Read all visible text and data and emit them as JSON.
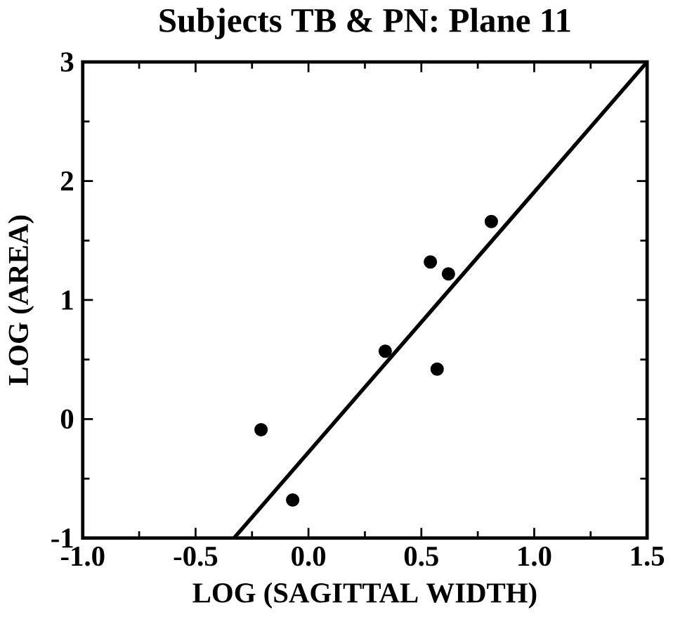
{
  "chart_data": {
    "type": "scatter",
    "title": "Subjects TB & PN: Plane 11",
    "xlabel": "LOG (SAGITTAL WIDTH)",
    "ylabel": "LOG (AREA)",
    "xlim": [
      -1.0,
      1.5
    ],
    "ylim": [
      -1,
      3
    ],
    "xticks": [
      {
        "value": -1.0,
        "label": "-1.0"
      },
      {
        "value": -0.5,
        "label": "-0.5"
      },
      {
        "value": 0.0,
        "label": "0.0"
      },
      {
        "value": 0.5,
        "label": "0.5"
      },
      {
        "value": 1.0,
        "label": "1.0"
      },
      {
        "value": 1.5,
        "label": "1.5"
      }
    ],
    "yticks": [
      -1,
      0,
      1,
      2,
      3
    ],
    "grid": false,
    "series": [
      {
        "color": "#000000",
        "marker": "circle",
        "x": [
          -0.21,
          -0.07,
          0.34,
          0.54,
          0.57,
          0.62,
          0.81
        ],
        "values": [
          -0.09,
          -0.68,
          0.57,
          1.32,
          0.42,
          1.22,
          1.66
        ]
      },
      {
        "type": "line",
        "color": "#000000",
        "marker": "none",
        "line_style": "solid",
        "x": [
          -0.33,
          1.5
        ],
        "values": [
          -1,
          3
        ]
      }
    ]
  }
}
